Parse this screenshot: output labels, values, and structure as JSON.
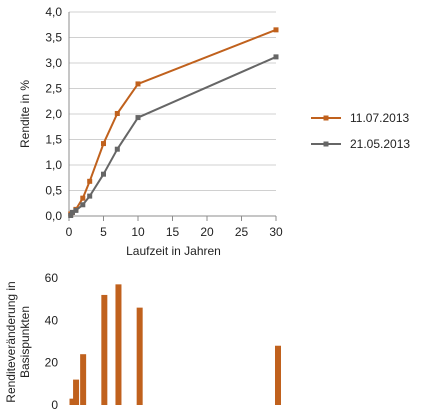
{
  "chart_data": [
    {
      "type": "line",
      "xlabel": "Laufzeit in Jahren",
      "ylabel": "Rendite in %",
      "xlim": [
        0,
        30
      ],
      "ylim": [
        0,
        4
      ],
      "x_ticks": [
        0,
        5,
        10,
        15,
        20,
        25,
        30
      ],
      "x_tick_labels": [
        "0",
        "5",
        "10",
        "15",
        "20",
        "25",
        "30"
      ],
      "y_ticks": [
        0,
        0.5,
        1,
        1.5,
        2,
        2.5,
        3,
        3.5,
        4
      ],
      "y_tick_labels": [
        "0,0",
        "0,5",
        "1,0",
        "1,5",
        "2,0",
        "2,5",
        "3,0",
        "3,5",
        "4,0"
      ],
      "grid": "horizontal",
      "legend_position": "right",
      "series": [
        {
          "name": "11.07.2013",
          "color": "#c0611d",
          "marker": "square",
          "x": [
            0.25,
            0.5,
            1,
            2,
            3,
            5,
            7,
            10,
            30
          ],
          "y": [
            0.04,
            0.07,
            0.13,
            0.35,
            0.68,
            1.42,
            2.01,
            2.59,
            3.65
          ]
        },
        {
          "name": "21.05.2013",
          "color": "#666666",
          "marker": "square",
          "x": [
            0.25,
            0.5,
            1,
            2,
            3,
            5,
            7,
            10,
            30
          ],
          "y": [
            0.01,
            0.07,
            0.11,
            0.22,
            0.39,
            0.82,
            1.31,
            1.93,
            3.12
          ]
        }
      ]
    },
    {
      "type": "bar",
      "ylabel": "Renditeveränderung in Basispunkten",
      "ylim": [
        0,
        60
      ],
      "y_ticks": [
        0,
        20,
        40,
        60
      ],
      "y_tick_labels": [
        "0",
        "20",
        "40",
        "60"
      ],
      "xlim": [
        0,
        30
      ],
      "grid": "none",
      "color": "#c0611d",
      "x": [
        0.25,
        1,
        2,
        5,
        7,
        10,
        30
      ],
      "values": [
        3,
        12,
        24,
        52,
        57,
        46,
        28
      ]
    }
  ]
}
